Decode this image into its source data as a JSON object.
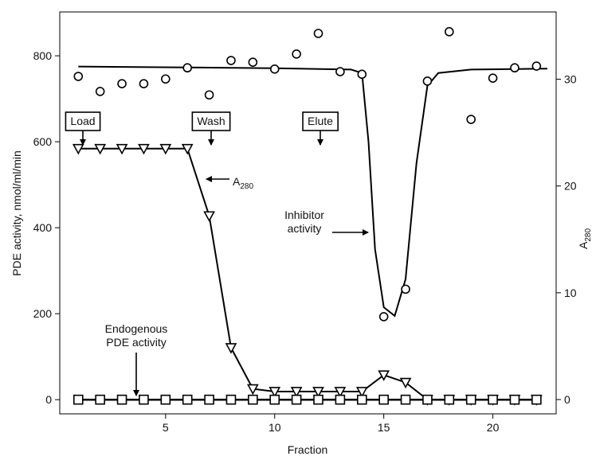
{
  "chart_data": {
    "type": "line",
    "xlabel": "Fraction",
    "ylabel": "PDE activity, nmol/ml/min",
    "y2label": {
      "text": "A",
      "subscript": "280"
    },
    "xlim": [
      0.15,
      22.9
    ],
    "xticks": [
      5,
      10,
      15,
      20
    ],
    "ylim": [
      -33,
      902
    ],
    "yticks": [
      0,
      200,
      400,
      600,
      800
    ],
    "y2lim": [
      -1.34,
      36.3
    ],
    "y2ticks": [
      0,
      10,
      20,
      30
    ],
    "x": [
      1,
      2,
      3,
      4,
      5,
      6,
      7,
      8,
      9,
      10,
      11,
      12,
      13,
      14,
      15,
      16,
      17,
      18,
      19,
      20,
      21,
      22
    ],
    "series": [
      {
        "marker": "circle",
        "color": "#000000",
        "values": [
          752,
          717,
          735,
          735,
          746,
          772,
          709,
          789,
          785,
          769,
          804,
          852,
          763,
          757,
          193,
          257,
          741,
          856,
          652,
          748,
          772,
          776
        ],
        "fit_x": [
          1,
          6,
          10,
          13.5,
          14,
          14.3,
          14.6,
          15,
          15.5,
          16,
          16.5,
          17,
          17.5,
          19,
          22.5
        ],
        "fit_values": [
          775,
          773,
          771,
          768,
          760,
          600,
          350,
          215,
          195,
          280,
          550,
          730,
          760,
          768,
          770
        ]
      },
      {
        "marker": "triangle",
        "color": "#000000",
        "axis": "y2",
        "values": [
          23.5,
          23.5,
          23.5,
          23.5,
          23.5,
          23.5,
          17.2,
          4.85,
          1.0,
          0.75,
          0.75,
          0.75,
          0.75,
          0.75,
          2.3,
          1.6,
          0,
          0,
          0,
          0,
          0,
          0
        ]
      },
      {
        "marker": "square",
        "color": "#000000",
        "values": [
          0,
          0,
          0,
          0,
          0,
          0,
          0,
          0,
          0,
          0,
          0,
          0,
          0,
          0,
          0,
          0,
          0,
          0,
          0,
          0,
          0,
          0
        ]
      }
    ],
    "annotations": [
      {
        "lines": [
          "Load"
        ],
        "boxed": true
      },
      {
        "lines": [
          "Wash"
        ],
        "boxed": true
      },
      {
        "lines": [
          "Elute"
        ],
        "boxed": true
      },
      {
        "text": "A",
        "subscript": "280"
      },
      {
        "lines": [
          "Inhibitor",
          "activity"
        ]
      },
      {
        "lines": [
          "Endogenous",
          "PDE activity"
        ]
      }
    ]
  }
}
